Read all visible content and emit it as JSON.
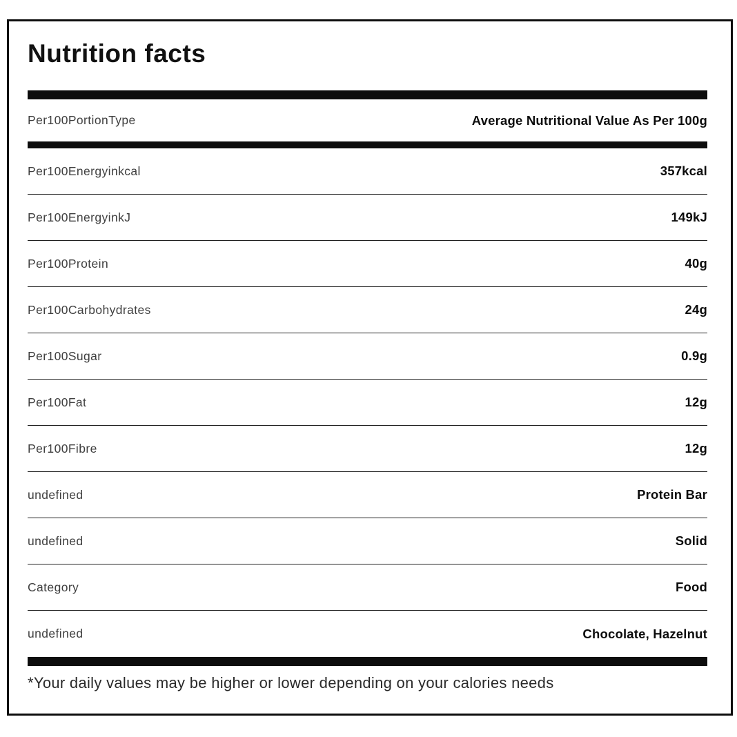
{
  "title": "Nutrition facts",
  "header": {
    "label": "Per100PortionType",
    "value": "Average Nutritional Value As Per 100g"
  },
  "rows": [
    {
      "label": "Per100Energyinkcal",
      "value": "357kcal"
    },
    {
      "label": "Per100EnergyinkJ",
      "value": "149kJ"
    },
    {
      "label": "Per100Protein",
      "value": "40g"
    },
    {
      "label": "Per100Carbohydrates",
      "value": "24g"
    },
    {
      "label": "Per100Sugar",
      "value": "0.9g"
    },
    {
      "label": "Per100Fat",
      "value": "12g"
    },
    {
      "label": "Per100Fibre",
      "value": "12g"
    },
    {
      "label": "undefined",
      "value": "Protein Bar"
    },
    {
      "label": "undefined",
      "value": "Solid"
    },
    {
      "label": "Category",
      "value": "Food"
    },
    {
      "label": "undefined",
      "value": "Chocolate, Hazelnut"
    }
  ],
  "footnote": "*Your daily values may be higher or lower depending on your calories needs",
  "colors": {
    "border": "#0d0d0d",
    "divider_thick": "#0d0d0d",
    "divider_thin": "#1f1f1f",
    "label_text": "#3f3f3f",
    "value_text": "#0c0c0c",
    "background": "#ffffff"
  }
}
